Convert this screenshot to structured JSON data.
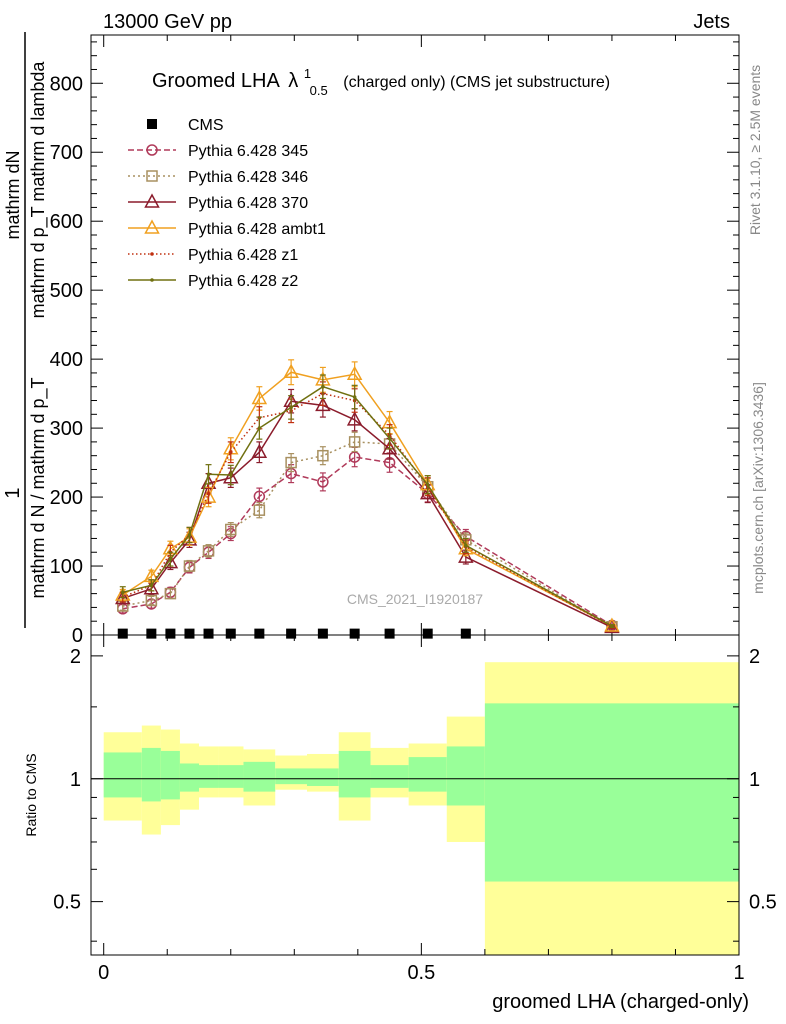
{
  "header": {
    "left": "13000 GeV pp",
    "right": "Jets"
  },
  "side_labels": {
    "rivet": "Rivet 3.1.10, ≥ 2.5M events",
    "mcplots": "mcplots.cern.ch [arXiv:1306.3436]"
  },
  "chart_data": {
    "type": "line",
    "title_main": "Groomed LHA",
    "title_symbol": "λ",
    "title_sup": "1",
    "title_sub": "0.5",
    "title_rest": "(charged only) (CMS jet substructure)",
    "watermark": "CMS_2021_I1920187",
    "ylabel_num": "mathrm dN",
    "ylabel_den": "mathrm d p_T mathrm d lambda",
    "ylabel_prefix": "1",
    "ylabel_prefix_den": "mathrm d N / mathrm d p_T",
    "xlabel": "groomed LHA (charged-only)",
    "ratio_ylabel": "Ratio to CMS",
    "xlim": [
      -0.02,
      1.0
    ],
    "ylim": [
      0,
      870
    ],
    "ratio_ylim": [
      0.37,
      2.25
    ],
    "x_ticks": [
      {
        "v": 0,
        "label": "0"
      },
      {
        "v": 0.5,
        "label": "0.5"
      },
      {
        "v": 1,
        "label": "1"
      }
    ],
    "y_ticks": [
      {
        "v": 0,
        "label": "0"
      },
      {
        "v": 100,
        "label": "100"
      },
      {
        "v": 200,
        "label": "200"
      },
      {
        "v": 300,
        "label": "300"
      },
      {
        "v": 400,
        "label": "400"
      },
      {
        "v": 500,
        "label": "500"
      },
      {
        "v": 600,
        "label": "600"
      },
      {
        "v": 700,
        "label": "700"
      },
      {
        "v": 800,
        "label": "800"
      }
    ],
    "ratio_ticks": [
      {
        "v": 0.5,
        "label": "0.5"
      },
      {
        "v": 1,
        "label": "1"
      },
      {
        "v": 2,
        "label": "2"
      }
    ],
    "bins": [
      0,
      0.06,
      0.09,
      0.12,
      0.15,
      0.18,
      0.22,
      0.27,
      0.32,
      0.37,
      0.42,
      0.48,
      0.54,
      0.6,
      1.0
    ],
    "x": [
      0.03,
      0.075,
      0.105,
      0.135,
      0.165,
      0.2,
      0.245,
      0.295,
      0.345,
      0.395,
      0.45,
      0.51,
      0.57,
      0.8
    ],
    "cms": [
      2,
      2,
      2,
      2,
      2,
      2,
      2,
      2,
      2,
      2,
      2,
      2,
      2,
      0
    ],
    "ratio_band_outer": [
      [
        0.79,
        1.3
      ],
      [
        0.73,
        1.35
      ],
      [
        0.77,
        1.32
      ],
      [
        0.84,
        1.22
      ],
      [
        0.9,
        1.2
      ],
      [
        0.9,
        1.2
      ],
      [
        0.86,
        1.18
      ],
      [
        0.94,
        1.14
      ],
      [
        0.93,
        1.15
      ],
      [
        0.79,
        1.3
      ],
      [
        0.9,
        1.19
      ],
      [
        0.86,
        1.22
      ],
      [
        0.7,
        1.42
      ],
      [
        0.36,
        1.93
      ]
    ],
    "ratio_band_inner": [
      [
        0.9,
        1.16
      ],
      [
        0.88,
        1.19
      ],
      [
        0.89,
        1.17
      ],
      [
        0.93,
        1.09
      ],
      [
        0.95,
        1.08
      ],
      [
        0.95,
        1.08
      ],
      [
        0.93,
        1.1
      ],
      [
        0.97,
        1.06
      ],
      [
        0.96,
        1.06
      ],
      [
        0.9,
        1.17
      ],
      [
        0.95,
        1.08
      ],
      [
        0.93,
        1.13
      ],
      [
        0.86,
        1.2
      ],
      [
        0.56,
        1.53
      ]
    ],
    "series": [
      {
        "name": "Pythia 6.428 345",
        "color": "#b03a5a",
        "dash": "6,3",
        "marker": "circle",
        "values": [
          38,
          45,
          62,
          98,
          120,
          147,
          201,
          234,
          222,
          258,
          250,
          205,
          143,
          14
        ],
        "err": [
          6,
          6,
          7,
          8,
          9,
          10,
          12,
          13,
          13,
          14,
          14,
          12,
          10,
          2
        ]
      },
      {
        "name": "Pythia 6.428 346",
        "color": "#a89060",
        "dash": "2,3",
        "marker": "square",
        "values": [
          42,
          50,
          60,
          100,
          122,
          153,
          181,
          250,
          260,
          280,
          277,
          215,
          138,
          12
        ],
        "err": [
          6,
          6,
          7,
          8,
          9,
          10,
          11,
          13,
          13,
          14,
          14,
          12,
          10,
          2
        ]
      },
      {
        "name": "Pythia 6.428 370",
        "color": "#8b1c2c",
        "dash": "",
        "marker": "triangle",
        "values": [
          53,
          67,
          105,
          138,
          220,
          228,
          265,
          339,
          333,
          312,
          270,
          205,
          113,
          11
        ],
        "err": [
          7,
          8,
          10,
          11,
          14,
          14,
          15,
          17,
          17,
          16,
          15,
          13,
          10,
          2
        ]
      },
      {
        "name": "Pythia 6.428 ambt1",
        "color": "#f0a020",
        "dash": "",
        "marker": "triangle",
        "values": [
          58,
          85,
          125,
          142,
          200,
          270,
          343,
          381,
          370,
          378,
          308,
          218,
          125,
          13
        ],
        "err": [
          8,
          9,
          11,
          12,
          14,
          16,
          17,
          18,
          18,
          18,
          16,
          13,
          10,
          2
        ]
      },
      {
        "name": "Pythia 6.428 z1",
        "color": "#c03010",
        "dash": "1.5,2.5",
        "marker": "dot",
        "values": [
          55,
          72,
          120,
          145,
          205,
          265,
          315,
          325,
          350,
          340,
          290,
          215,
          128,
          12
        ],
        "err": [
          7,
          8,
          10,
          11,
          14,
          15,
          16,
          17,
          17,
          17,
          15,
          13,
          10,
          2
        ]
      },
      {
        "name": "Pythia 6.428 z2",
        "color": "#707010",
        "dash": "",
        "marker": "dot",
        "values": [
          62,
          72,
          110,
          145,
          233,
          232,
          300,
          330,
          360,
          345,
          285,
          218,
          130,
          13
        ],
        "err": [
          8,
          8,
          10,
          11,
          14,
          14,
          16,
          17,
          17,
          17,
          15,
          13,
          10,
          2
        ]
      }
    ],
    "legend_placement": "top-left",
    "legend_cms_label": "CMS"
  }
}
